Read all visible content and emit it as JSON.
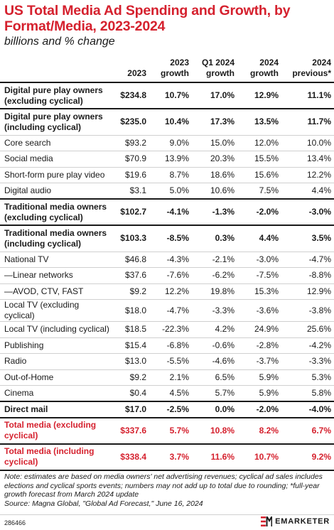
{
  "header": {
    "title": "US Total Media Ad Spending and Growth, by Format/Media, 2023-2024",
    "subtitle": "billions and % change"
  },
  "colors": {
    "accent": "#d5212e",
    "text": "#1a1a1a"
  },
  "chart_data": {
    "type": "table",
    "title": "US Total Media Ad Spending and Growth, by Format/Media, 2023-2024",
    "subtitle": "billions and % change",
    "columns": [
      {
        "line1": "",
        "line2": ""
      },
      {
        "line1": "",
        "line2": "2023"
      },
      {
        "line1": "2023",
        "line2": "growth"
      },
      {
        "line1": "Q1 2024",
        "line2": "growth"
      },
      {
        "line1": "2024",
        "line2": "growth"
      },
      {
        "line1": "2024",
        "line2": "previous*"
      }
    ],
    "rows": [
      {
        "label": "Digital pure play owners (excluding cyclical)",
        "values": [
          "$234.8",
          "10.7%",
          "17.0%",
          "12.9%",
          "11.1%"
        ],
        "bold": true,
        "red": false,
        "thick": true
      },
      {
        "label": "Digital pure play owners (including cyclical)",
        "values": [
          "$235.0",
          "10.4%",
          "17.3%",
          "13.5%",
          "11.7%"
        ],
        "bold": true,
        "red": false,
        "thick": false
      },
      {
        "label": "Core search",
        "values": [
          "$93.2",
          "9.0%",
          "15.0%",
          "12.0%",
          "10.0%"
        ],
        "bold": false,
        "red": false,
        "thick": false
      },
      {
        "label": "Social media",
        "values": [
          "$70.9",
          "13.9%",
          "20.3%",
          "15.5%",
          "13.4%"
        ],
        "bold": false,
        "red": false,
        "thick": false
      },
      {
        "label": "Short-form pure play video",
        "values": [
          "$19.6",
          "8.7%",
          "18.6%",
          "15.6%",
          "12.2%"
        ],
        "bold": false,
        "red": false,
        "thick": false
      },
      {
        "label": "Digital audio",
        "values": [
          "$3.1",
          "5.0%",
          "10.6%",
          "7.5%",
          "4.4%"
        ],
        "bold": false,
        "red": false,
        "thick": true
      },
      {
        "label": "Traditional media owners (excluding cyclical)",
        "values": [
          "$102.7",
          "-4.1%",
          "-1.3%",
          "-2.0%",
          "-3.0%"
        ],
        "bold": true,
        "red": false,
        "thick": true
      },
      {
        "label": "Traditional media owners (including cyclical)",
        "values": [
          "$103.3",
          "-8.5%",
          "0.3%",
          "4.4%",
          "3.5%"
        ],
        "bold": true,
        "red": false,
        "thick": false
      },
      {
        "label": "National TV",
        "values": [
          "$46.8",
          "-4.3%",
          "-2.1%",
          "-3.0%",
          "-4.7%"
        ],
        "bold": false,
        "red": false,
        "thick": false
      },
      {
        "label": "—Linear networks",
        "values": [
          "$37.6",
          "-7.6%",
          "-6.2%",
          "-7.5%",
          "-8.8%"
        ],
        "bold": false,
        "red": false,
        "thick": false
      },
      {
        "label": "—AVOD, CTV, FAST",
        "values": [
          "$9.2",
          "12.2%",
          "19.8%",
          "15.3%",
          "12.9%"
        ],
        "bold": false,
        "red": false,
        "thick": false
      },
      {
        "label": "Local TV (excluding cyclical)",
        "values": [
          "$18.0",
          "-4.7%",
          "-3.3%",
          "-3.6%",
          "-3.8%"
        ],
        "bold": false,
        "red": false,
        "thick": false
      },
      {
        "label": "Local TV (including cyclical)",
        "values": [
          "$18.5",
          "-22.3%",
          "4.2%",
          "24.9%",
          "25.6%"
        ],
        "bold": false,
        "red": false,
        "thick": false
      },
      {
        "label": "Publishing",
        "values": [
          "$15.4",
          "-6.8%",
          "-0.6%",
          "-2.8%",
          "-4.2%"
        ],
        "bold": false,
        "red": false,
        "thick": false
      },
      {
        "label": "Radio",
        "values": [
          "$13.0",
          "-5.5%",
          "-4.6%",
          "-3.7%",
          "-3.3%"
        ],
        "bold": false,
        "red": false,
        "thick": false
      },
      {
        "label": "Out-of-Home",
        "values": [
          "$9.2",
          "2.1%",
          "6.5%",
          "5.9%",
          "5.3%"
        ],
        "bold": false,
        "red": false,
        "thick": false
      },
      {
        "label": "Cinema",
        "values": [
          "$0.4",
          "4.5%",
          "5.7%",
          "5.9%",
          "5.8%"
        ],
        "bold": false,
        "red": false,
        "thick": true
      },
      {
        "label": "Direct mail",
        "values": [
          "$17.0",
          "-2.5%",
          "0.0%",
          "-2.0%",
          "-4.0%"
        ],
        "bold": true,
        "red": false,
        "thick": true
      },
      {
        "label": "Total media (excluding cyclical)",
        "values": [
          "$337.6",
          "5.7%",
          "10.8%",
          "8.2%",
          "6.7%"
        ],
        "bold": true,
        "red": true,
        "thick": true
      },
      {
        "label": "Total media (including cyclical)",
        "values": [
          "$338.4",
          "3.7%",
          "11.6%",
          "10.7%",
          "9.2%"
        ],
        "bold": true,
        "red": true,
        "thick": true
      }
    ]
  },
  "notes": {
    "note": "Note: estimates are based on media owners' net advertising revenues; cyclical ad sales includes elections and cyclical sports events; numbers may not add up to total due to rounding; *full-year growth forecast from March 2024 update",
    "source": "Source: Magna Global, \"Global Ad Forecast,\" June 16, 2024"
  },
  "footer": {
    "chart_id": "286466",
    "brand": "EMARKETER"
  }
}
